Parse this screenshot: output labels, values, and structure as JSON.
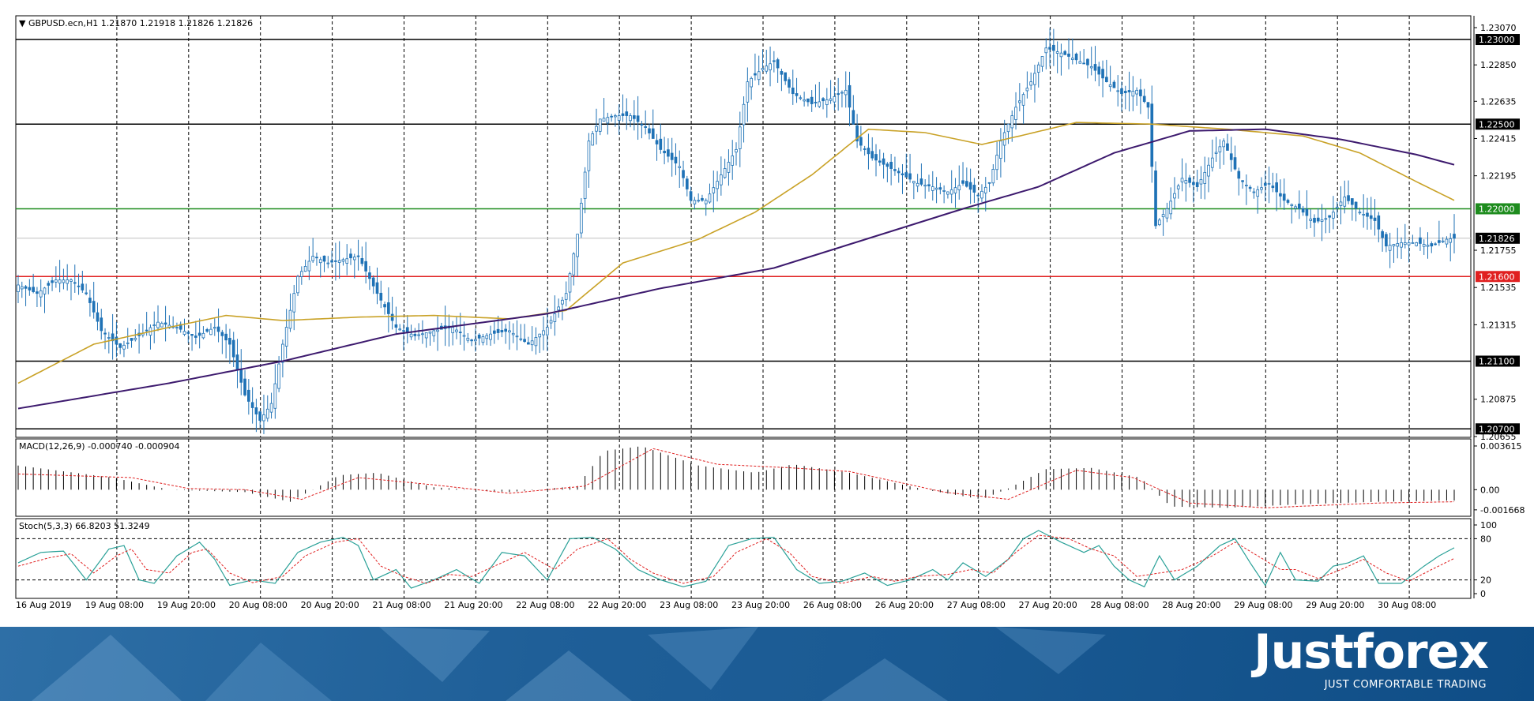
{
  "window": {
    "symbol_header": "GBPUSD.ecn,H1  1.21870 1.21918 1.21826 1.21826"
  },
  "colors": {
    "bull_candle": "#ffffff",
    "bear_candle": "#1f72b6",
    "candle_outline": "#1f72b6",
    "ma_fast": "#c9a227",
    "ma_slow": "#3d1a6e",
    "support_red": "#e02020",
    "level_green": "#1e8c1e",
    "level_black": "#000000",
    "grid": "#000000"
  },
  "chart_data": [
    {
      "type": "candlestick",
      "name": "GBPUSD.ecn,H1",
      "title": "GBPUSD.ecn,H1  1.21870 1.21918 1.21826 1.21826",
      "ylim": [
        1.2065,
        1.2314
      ],
      "y_ticks": [
        "1.23070",
        "1.22850",
        "1.22635",
        "1.22415",
        "1.22195",
        "1.21755",
        "1.21535",
        "1.21315",
        "1.20875",
        "1.20655"
      ],
      "x_ticks": [
        "16 Aug 2019",
        "19 Aug 08:00",
        "19 Aug 20:00",
        "20 Aug 08:00",
        "20 Aug 20:00",
        "21 Aug 08:00",
        "21 Aug 20:00",
        "22 Aug 08:00",
        "22 Aug 20:00",
        "23 Aug 08:00",
        "23 Aug 20:00",
        "26 Aug 08:00",
        "26 Aug 20:00",
        "27 Aug 08:00",
        "27 Aug 20:00",
        "28 Aug 08:00",
        "28 Aug 20:00",
        "29 Aug 08:00",
        "29 Aug 20:00",
        "30 Aug 08:00"
      ],
      "current_price": "1.21826",
      "horizontal_levels": [
        {
          "value": 1.23,
          "label": "1.23000",
          "color": "#000000"
        },
        {
          "value": 1.225,
          "label": "1.22500",
          "color": "#000000"
        },
        {
          "value": 1.22,
          "label": "1.22000",
          "color": "#1e8c1e"
        },
        {
          "value": 1.216,
          "label": "1.21600",
          "color": "#e02020"
        },
        {
          "value": 1.211,
          "label": "1.21100",
          "color": "#000000"
        },
        {
          "value": 1.207,
          "label": "1.20700",
          "color": "#000000"
        }
      ],
      "close_anchors": [
        [
          0,
          1.2155
        ],
        [
          5,
          1.215
        ],
        [
          10,
          1.2158
        ],
        [
          14,
          1.2158
        ],
        [
          18,
          1.215
        ],
        [
          22,
          1.2128
        ],
        [
          27,
          1.2118
        ],
        [
          32,
          1.2125
        ],
        [
          37,
          1.2133
        ],
        [
          42,
          1.213
        ],
        [
          47,
          1.2124
        ],
        [
          52,
          1.213
        ],
        [
          56,
          1.212
        ],
        [
          60,
          1.209
        ],
        [
          64,
          1.2075
        ],
        [
          67,
          1.2085
        ],
        [
          70,
          1.212
        ],
        [
          74,
          1.216
        ],
        [
          78,
          1.2172
        ],
        [
          82,
          1.2168
        ],
        [
          86,
          1.217
        ],
        [
          90,
          1.2172
        ],
        [
          95,
          1.215
        ],
        [
          100,
          1.213
        ],
        [
          105,
          1.2125
        ],
        [
          110,
          1.2128
        ],
        [
          115,
          1.213
        ],
        [
          120,
          1.2122
        ],
        [
          125,
          1.2126
        ],
        [
          130,
          1.2128
        ],
        [
          135,
          1.212
        ],
        [
          140,
          1.213
        ],
        [
          145,
          1.215
        ],
        [
          148,
          1.2185
        ],
        [
          151,
          1.224
        ],
        [
          154,
          1.2253
        ],
        [
          158,
          1.2255
        ],
        [
          162,
          1.2255
        ],
        [
          166,
          1.2248
        ],
        [
          170,
          1.2235
        ],
        [
          175,
          1.2225
        ],
        [
          178,
          1.2205
        ],
        [
          182,
          1.2205
        ],
        [
          186,
          1.222
        ],
        [
          190,
          1.2235
        ],
        [
          193,
          1.2275
        ],
        [
          197,
          1.2283
        ],
        [
          200,
          1.2287
        ],
        [
          205,
          1.2268
        ],
        [
          210,
          1.2262
        ],
        [
          215,
          1.2265
        ],
        [
          219,
          1.227
        ],
        [
          222,
          1.224
        ],
        [
          226,
          1.223
        ],
        [
          230,
          1.2225
        ],
        [
          234,
          1.222
        ],
        [
          238,
          1.2215
        ],
        [
          242,
          1.2213
        ],
        [
          246,
          1.221
        ],
        [
          250,
          1.2215
        ],
        [
          254,
          1.2208
        ],
        [
          257,
          1.2215
        ],
        [
          260,
          1.224
        ],
        [
          264,
          1.226
        ],
        [
          268,
          1.2275
        ],
        [
          272,
          1.2295
        ],
        [
          276,
          1.2292
        ],
        [
          280,
          1.2288
        ],
        [
          284,
          1.2284
        ],
        [
          288,
          1.2275
        ],
        [
          292,
          1.2268
        ],
        [
          296,
          1.227
        ],
        [
          299,
          1.226
        ],
        [
          301,
          1.219
        ],
        [
          304,
          1.22
        ],
        [
          308,
          1.2218
        ],
        [
          312,
          1.2213
        ],
        [
          316,
          1.223
        ],
        [
          319,
          1.224
        ],
        [
          323,
          1.2218
        ],
        [
          327,
          1.221
        ],
        [
          331,
          1.2215
        ],
        [
          335,
          1.2205
        ],
        [
          339,
          1.22
        ],
        [
          343,
          1.2192
        ],
        [
          347,
          1.2195
        ],
        [
          351,
          1.2207
        ],
        [
          355,
          1.2198
        ],
        [
          359,
          1.2193
        ],
        [
          362,
          1.2178
        ],
        [
          366,
          1.218
        ],
        [
          370,
          1.218
        ],
        [
          374,
          1.2178
        ],
        [
          378,
          1.2182
        ],
        [
          380,
          1.21826
        ]
      ],
      "ma_fast_anchors": [
        [
          0,
          1.2097
        ],
        [
          20,
          1.212
        ],
        [
          40,
          1.213
        ],
        [
          55,
          1.2137
        ],
        [
          70,
          1.2134
        ],
        [
          90,
          1.2136
        ],
        [
          110,
          1.2137
        ],
        [
          130,
          1.2135
        ],
        [
          145,
          1.214
        ],
        [
          160,
          1.2168
        ],
        [
          180,
          1.2182
        ],
        [
          195,
          1.2198
        ],
        [
          210,
          1.222
        ],
        [
          225,
          1.2247
        ],
        [
          240,
          1.2245
        ],
        [
          255,
          1.2238
        ],
        [
          265,
          1.2243
        ],
        [
          280,
          1.2251
        ],
        [
          300,
          1.225
        ],
        [
          320,
          1.2247
        ],
        [
          340,
          1.2243
        ],
        [
          355,
          1.2233
        ],
        [
          370,
          1.2216
        ],
        [
          380,
          1.2205
        ]
      ],
      "ma_slow_anchors": [
        [
          0,
          1.2082
        ],
        [
          40,
          1.2097
        ],
        [
          70,
          1.211
        ],
        [
          100,
          1.2126
        ],
        [
          140,
          1.2138
        ],
        [
          170,
          1.2153
        ],
        [
          200,
          1.2165
        ],
        [
          230,
          1.2186
        ],
        [
          250,
          1.22
        ],
        [
          270,
          1.2213
        ],
        [
          290,
          1.2233
        ],
        [
          310,
          1.2246
        ],
        [
          330,
          1.2247
        ],
        [
          350,
          1.2241
        ],
        [
          370,
          1.2232
        ],
        [
          380,
          1.2226
        ]
      ]
    },
    {
      "type": "bar",
      "name": "MACD(12,26,9) -0.000740 -0.000904",
      "title": "MACD(12,26,9) -0.000740 -0.000904",
      "ylim": [
        -0.0022,
        0.0042
      ],
      "y_ticks": [
        "0.003615",
        "0.00",
        "-0.001668"
      ],
      "macd_anchors": [
        [
          0,
          0.002
        ],
        [
          25,
          0.001
        ],
        [
          40,
          0.0
        ],
        [
          60,
          -0.0002
        ],
        [
          72,
          -0.001
        ],
        [
          85,
          0.0012
        ],
        [
          95,
          0.0014
        ],
        [
          110,
          0.0002
        ],
        [
          130,
          -0.0002
        ],
        [
          148,
          0.0003
        ],
        [
          155,
          0.0032
        ],
        [
          165,
          0.0036
        ],
        [
          180,
          0.002
        ],
        [
          195,
          0.0014
        ],
        [
          205,
          0.0021
        ],
        [
          220,
          0.0014
        ],
        [
          240,
          0.0
        ],
        [
          255,
          -0.0008
        ],
        [
          262,
          0.0001
        ],
        [
          272,
          0.0017
        ],
        [
          284,
          0.0018
        ],
        [
          297,
          0.001
        ],
        [
          305,
          -0.0014
        ],
        [
          320,
          -0.0015
        ],
        [
          340,
          -0.0012
        ],
        [
          360,
          -0.001
        ],
        [
          380,
          -0.0009
        ]
      ],
      "signal_anchors": [
        [
          0,
          0.0013
        ],
        [
          30,
          0.001
        ],
        [
          45,
          0.0001
        ],
        [
          60,
          0.0
        ],
        [
          75,
          -0.0008
        ],
        [
          90,
          0.001
        ],
        [
          110,
          0.0004
        ],
        [
          130,
          -0.0003
        ],
        [
          150,
          0.0003
        ],
        [
          168,
          0.0034
        ],
        [
          185,
          0.0021
        ],
        [
          205,
          0.0018
        ],
        [
          220,
          0.0015
        ],
        [
          245,
          -0.0002
        ],
        [
          262,
          -0.0008
        ],
        [
          280,
          0.0016
        ],
        [
          295,
          0.001
        ],
        [
          310,
          -0.0011
        ],
        [
          330,
          -0.0015
        ],
        [
          360,
          -0.0011
        ],
        [
          380,
          -0.001
        ]
      ]
    },
    {
      "type": "line",
      "name": "Stoch(5,3,3) 66.8203 51.3249",
      "title": "Stoch(5,3,3) 66.8203 51.3249",
      "ylim": [
        0,
        100
      ],
      "y_ticks": [
        "100",
        "80",
        "20",
        "0"
      ],
      "levels": [
        80,
        20
      ],
      "main_anchors": [
        [
          0,
          45
        ],
        [
          6,
          60
        ],
        [
          12,
          62
        ],
        [
          18,
          20
        ],
        [
          24,
          65
        ],
        [
          28,
          70
        ],
        [
          32,
          20
        ],
        [
          36,
          15
        ],
        [
          42,
          55
        ],
        [
          48,
          75
        ],
        [
          52,
          50
        ],
        [
          56,
          12
        ],
        [
          62,
          20
        ],
        [
          68,
          15
        ],
        [
          74,
          60
        ],
        [
          80,
          75
        ],
        [
          86,
          82
        ],
        [
          90,
          70
        ],
        [
          94,
          20
        ],
        [
          100,
          35
        ],
        [
          104,
          8
        ],
        [
          110,
          20
        ],
        [
          116,
          35
        ],
        [
          122,
          15
        ],
        [
          128,
          60
        ],
        [
          134,
          55
        ],
        [
          140,
          20
        ],
        [
          146,
          80
        ],
        [
          152,
          82
        ],
        [
          158,
          65
        ],
        [
          164,
          35
        ],
        [
          170,
          20
        ],
        [
          176,
          10
        ],
        [
          182,
          18
        ],
        [
          188,
          70
        ],
        [
          194,
          80
        ],
        [
          200,
          82
        ],
        [
          206,
          35
        ],
        [
          212,
          15
        ],
        [
          218,
          18
        ],
        [
          224,
          30
        ],
        [
          230,
          12
        ],
        [
          236,
          20
        ],
        [
          242,
          35
        ],
        [
          246,
          20
        ],
        [
          250,
          45
        ],
        [
          256,
          25
        ],
        [
          262,
          50
        ],
        [
          266,
          80
        ],
        [
          270,
          92
        ],
        [
          276,
          75
        ],
        [
          282,
          60
        ],
        [
          286,
          70
        ],
        [
          290,
          40
        ],
        [
          294,
          20
        ],
        [
          298,
          10
        ],
        [
          302,
          55
        ],
        [
          306,
          20
        ],
        [
          312,
          40
        ],
        [
          318,
          70
        ],
        [
          322,
          80
        ],
        [
          326,
          45
        ],
        [
          330,
          12
        ],
        [
          334,
          60
        ],
        [
          338,
          20
        ],
        [
          344,
          18
        ],
        [
          348,
          40
        ],
        [
          352,
          45
        ],
        [
          356,
          55
        ],
        [
          360,
          15
        ],
        [
          366,
          15
        ],
        [
          372,
          40
        ],
        [
          376,
          55
        ],
        [
          380,
          66.8
        ]
      ],
      "signal_anchors": [
        [
          0,
          40
        ],
        [
          8,
          52
        ],
        [
          14,
          58
        ],
        [
          20,
          30
        ],
        [
          26,
          55
        ],
        [
          30,
          65
        ],
        [
          34,
          35
        ],
        [
          40,
          30
        ],
        [
          46,
          60
        ],
        [
          50,
          65
        ],
        [
          56,
          30
        ],
        [
          62,
          16
        ],
        [
          70,
          25
        ],
        [
          76,
          55
        ],
        [
          84,
          75
        ],
        [
          90,
          80
        ],
        [
          96,
          40
        ],
        [
          102,
          25
        ],
        [
          108,
          15
        ],
        [
          114,
          28
        ],
        [
          120,
          25
        ],
        [
          128,
          45
        ],
        [
          134,
          60
        ],
        [
          142,
          35
        ],
        [
          148,
          65
        ],
        [
          156,
          80
        ],
        [
          162,
          50
        ],
        [
          168,
          30
        ],
        [
          176,
          15
        ],
        [
          184,
          25
        ],
        [
          190,
          60
        ],
        [
          198,
          80
        ],
        [
          204,
          60
        ],
        [
          210,
          25
        ],
        [
          218,
          15
        ],
        [
          226,
          25
        ],
        [
          232,
          18
        ],
        [
          238,
          25
        ],
        [
          246,
          28
        ],
        [
          252,
          35
        ],
        [
          258,
          30
        ],
        [
          264,
          60
        ],
        [
          270,
          85
        ],
        [
          278,
          80
        ],
        [
          284,
          65
        ],
        [
          290,
          55
        ],
        [
          296,
          25
        ],
        [
          302,
          30
        ],
        [
          308,
          35
        ],
        [
          316,
          55
        ],
        [
          322,
          75
        ],
        [
          328,
          55
        ],
        [
          334,
          35
        ],
        [
          338,
          35
        ],
        [
          344,
          22
        ],
        [
          350,
          35
        ],
        [
          356,
          50
        ],
        [
          362,
          30
        ],
        [
          368,
          18
        ],
        [
          374,
          35
        ],
        [
          380,
          51.3
        ]
      ]
    }
  ],
  "branding": {
    "logo_text": "Justforex",
    "tagline": "JUST COMFORTABLE TRADING"
  }
}
